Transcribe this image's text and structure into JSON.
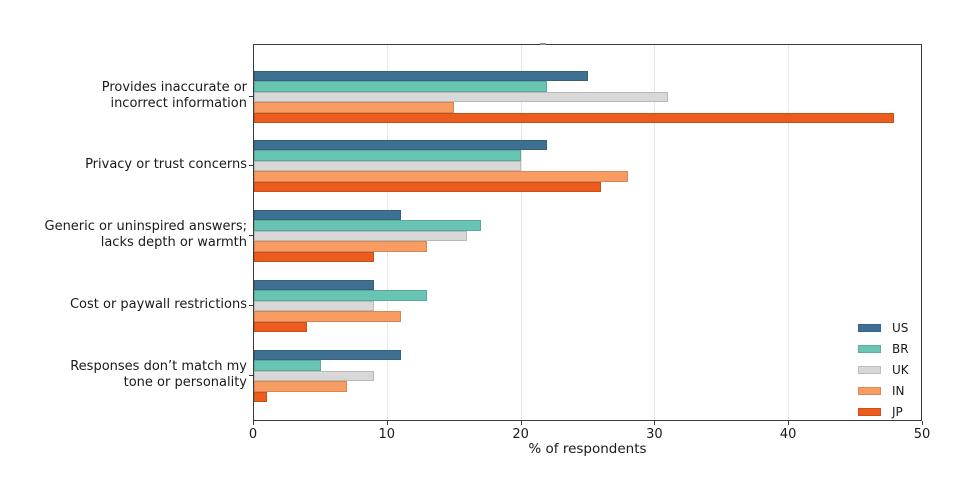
{
  "chart_data": {
    "type": "bar",
    "orientation": "horizontal",
    "title": "",
    "xlabel": "% of respondents",
    "ylabel": "",
    "xlim": [
      0,
      50
    ],
    "xticks": [
      0,
      10,
      20,
      30,
      40,
      50
    ],
    "gridlines_x": [
      10,
      20,
      30,
      40
    ],
    "grid": true,
    "legend_position": "lower right inside plot",
    "categories": [
      "Provides inaccurate or incorrect information",
      "Privacy or trust concerns",
      "Generic or uninspired answers; lacks depth or warmth",
      "Cost or paywall restrictions",
      "Responses don’t match my tone or personality"
    ],
    "category_lines": [
      [
        "Provides inaccurate or",
        "incorrect information"
      ],
      [
        "Privacy or trust concerns"
      ],
      [
        "Generic or uninspired answers;",
        "lacks depth or warmth"
      ],
      [
        "Cost or paywall restrictions"
      ],
      [
        "Responses don’t match my",
        "tone or personality"
      ]
    ],
    "series": [
      {
        "name": "US",
        "color": "#3e7091",
        "values": [
          25,
          22,
          11,
          9,
          11
        ]
      },
      {
        "name": "BR",
        "color": "#68c5b4",
        "values": [
          22,
          20,
          17,
          13,
          5
        ]
      },
      {
        "name": "UK",
        "color": "#d8d8d8",
        "values": [
          31,
          20,
          16,
          9,
          9
        ]
      },
      {
        "name": "IN",
        "color": "#f99c63",
        "values": [
          15,
          28,
          13,
          11,
          7
        ]
      },
      {
        "name": "JP",
        "color": "#eb5c1e",
        "values": [
          48,
          26,
          9,
          4,
          1
        ]
      }
    ]
  }
}
